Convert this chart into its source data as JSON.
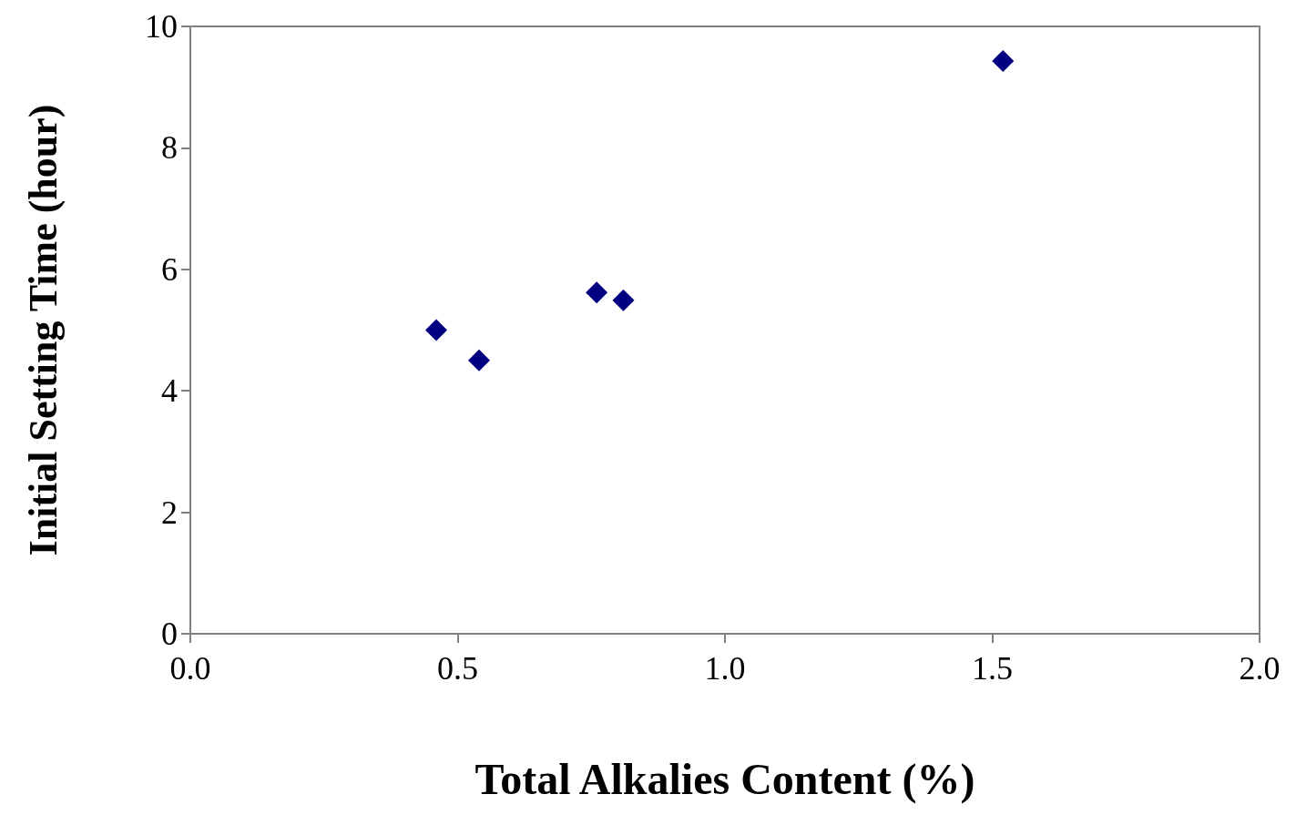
{
  "chart_data": {
    "type": "scatter",
    "xlabel": "Total Alkalies Content (%)",
    "ylabel": "Initial Setting Time (hour)",
    "x": [
      0.46,
      0.54,
      0.76,
      0.81,
      1.52
    ],
    "values": [
      5.0,
      4.5,
      5.62,
      5.49,
      9.43
    ],
    "color": "#000080",
    "marker": "diamond",
    "grid": false,
    "xlim": [
      0,
      2
    ],
    "xticks": [
      {
        "value": 0,
        "label": "0.0"
      },
      {
        "value": 0.5,
        "label": "0.5"
      },
      {
        "value": 1,
        "label": "1.0"
      },
      {
        "value": 1.5,
        "label": "1.5"
      },
      {
        "value": 2,
        "label": "2.0"
      }
    ],
    "ylim": [
      0,
      10
    ],
    "yticks": [
      0,
      2,
      4,
      6,
      8,
      10
    ]
  }
}
